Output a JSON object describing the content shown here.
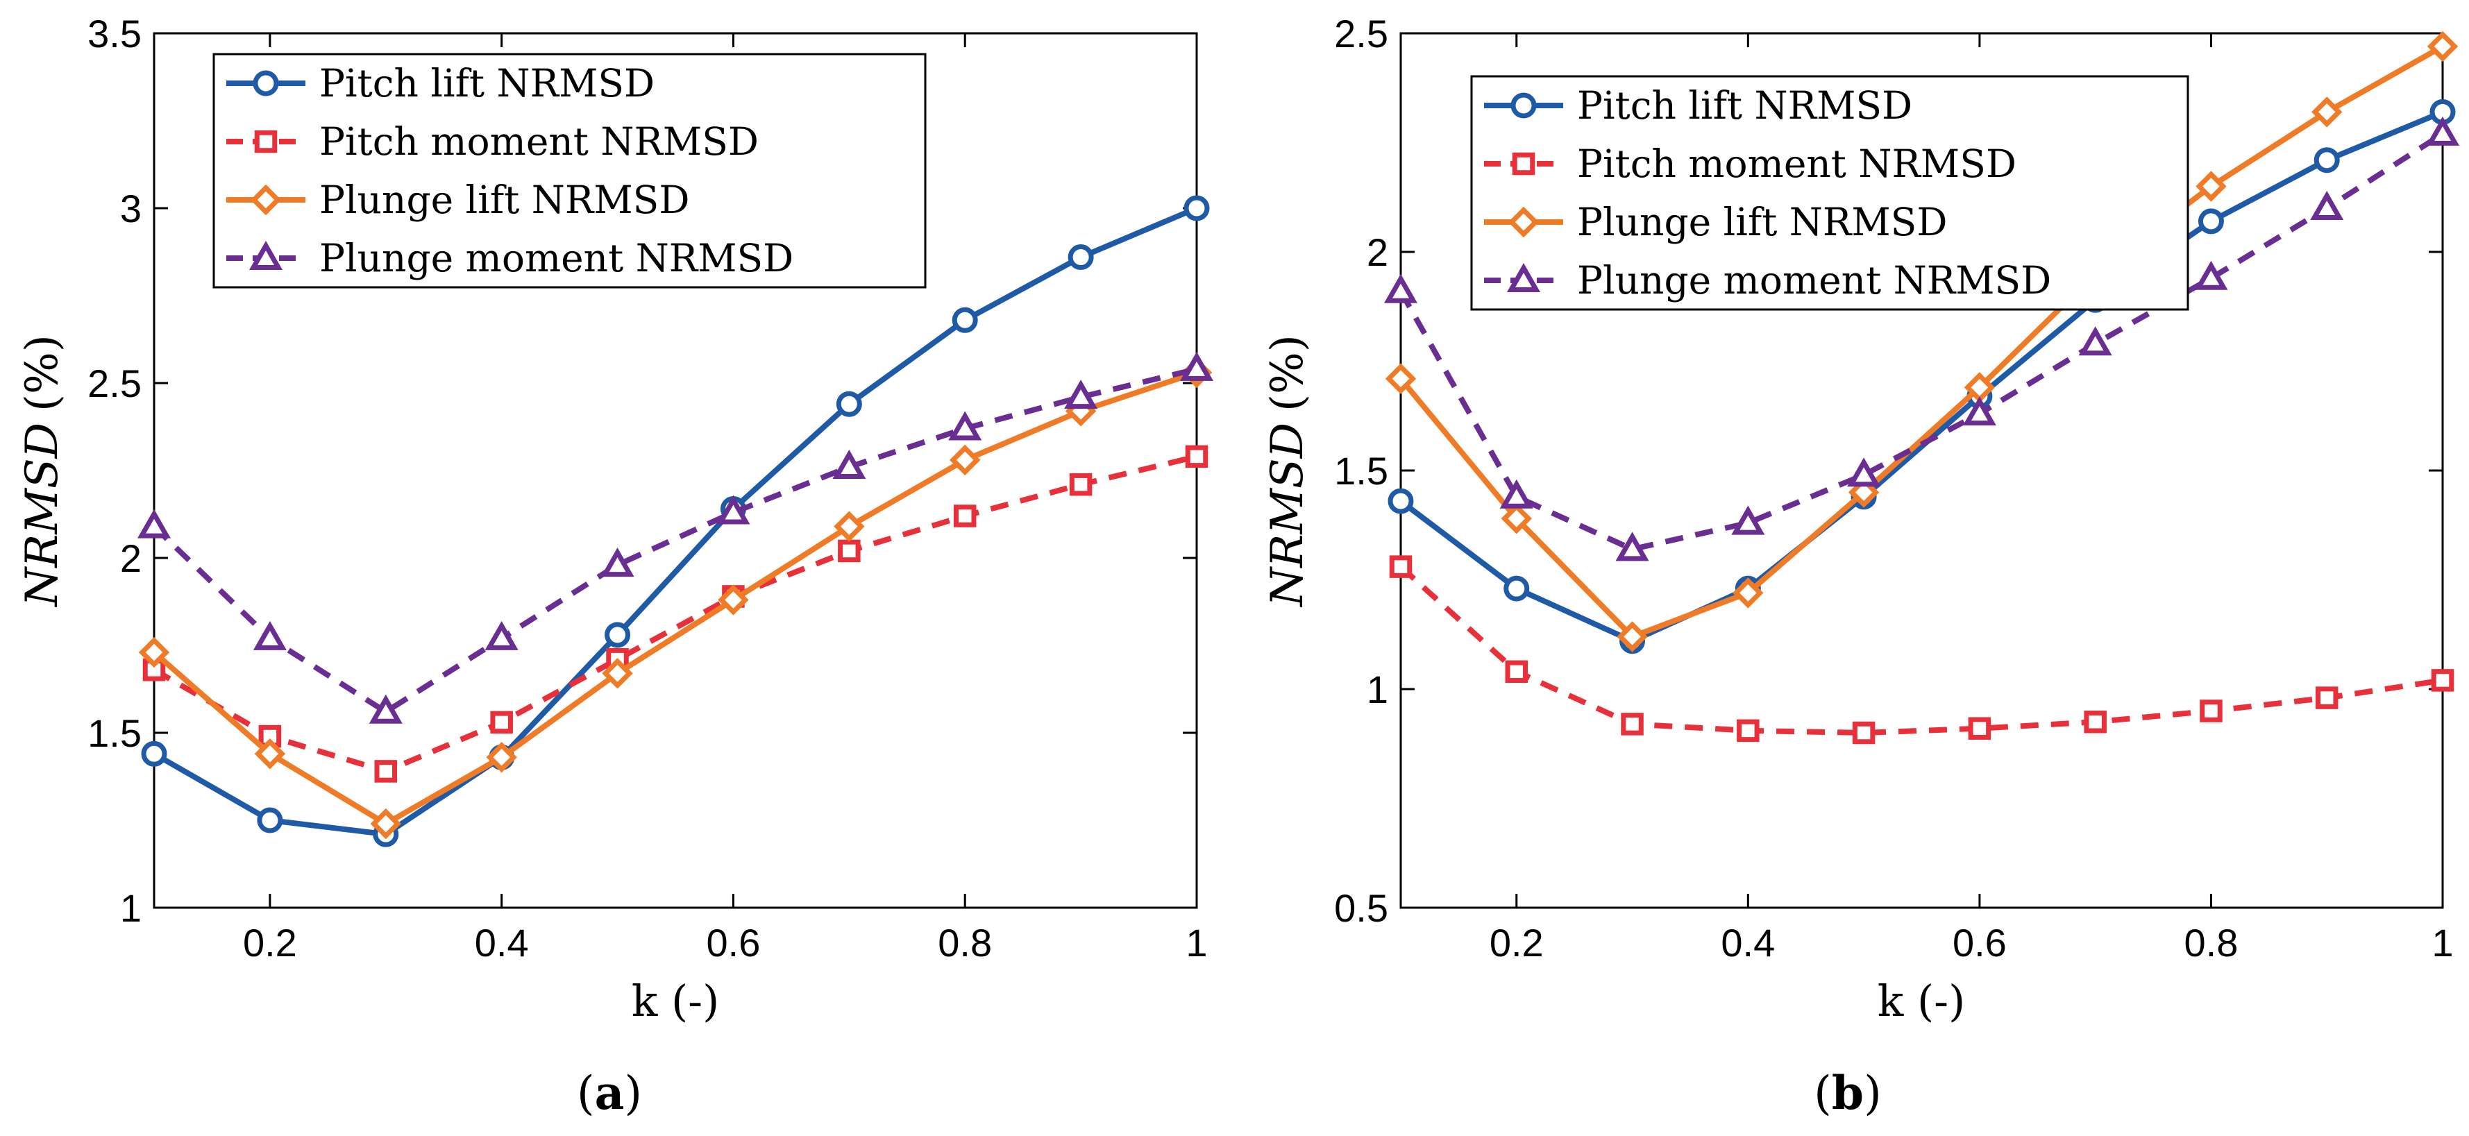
{
  "chart_data": [
    {
      "type": "line",
      "panel": "a",
      "caption_letter": "a",
      "xlabel": "k (-)",
      "ylabel_var": "NRMSD",
      "ylabel_unit": "(%)",
      "xlim": [
        0.1,
        1
      ],
      "ylim": [
        1,
        3.5
      ],
      "xticks": [
        0.2,
        0.4,
        0.6,
        0.8,
        1
      ],
      "xtick_labels": [
        "0.2",
        "0.4",
        "0.6",
        "0.8",
        "1"
      ],
      "yticks": [
        1,
        1.5,
        2,
        2.5,
        3,
        3.5
      ],
      "ytick_labels": [
        "1",
        "1.5",
        "2",
        "2.5",
        "3",
        "3.5"
      ],
      "legend_position": "top-left",
      "x": [
        0.1,
        0.2,
        0.3,
        0.4,
        0.5,
        0.6,
        0.7,
        0.8,
        0.9,
        1.0
      ],
      "series": [
        {
          "name": "Pitch lift NRMSD",
          "color": "#1f5aa6",
          "dash": "solid",
          "marker": "circle",
          "values": [
            1.44,
            1.25,
            1.21,
            1.43,
            1.78,
            2.14,
            2.44,
            2.68,
            2.86,
            3.0
          ]
        },
        {
          "name": "Pitch moment NRMSD",
          "color": "#e8303a",
          "dash": "dashed",
          "marker": "square",
          "values": [
            1.68,
            1.49,
            1.39,
            1.53,
            1.71,
            1.89,
            2.02,
            2.12,
            2.21,
            2.29
          ]
        },
        {
          "name": "Plunge lift NRMSD",
          "color": "#f07b26",
          "dash": "solid",
          "marker": "diamond",
          "values": [
            1.73,
            1.44,
            1.24,
            1.43,
            1.67,
            1.88,
            2.09,
            2.28,
            2.42,
            2.53
          ]
        },
        {
          "name": "Plunge moment NRMSD",
          "color": "#6a2d91",
          "dash": "dashed",
          "marker": "triangle",
          "values": [
            2.09,
            1.77,
            1.56,
            1.77,
            1.98,
            2.13,
            2.26,
            2.37,
            2.46,
            2.54
          ]
        }
      ]
    },
    {
      "type": "line",
      "panel": "b",
      "caption_letter": "b",
      "xlabel": "k (-)",
      "ylabel_var": "NRMSD",
      "ylabel_unit": "(%)",
      "xlim": [
        0.1,
        1
      ],
      "ylim": [
        0.5,
        2.5
      ],
      "xticks": [
        0.2,
        0.4,
        0.6,
        0.8,
        1
      ],
      "xtick_labels": [
        "0.2",
        "0.4",
        "0.6",
        "0.8",
        "1"
      ],
      "yticks": [
        0.5,
        1,
        1.5,
        2,
        2.5
      ],
      "ytick_labels": [
        "0.5",
        "1",
        "1.5",
        "2",
        "2.5"
      ],
      "legend_position": "top-left",
      "x": [
        0.1,
        0.2,
        0.3,
        0.4,
        0.5,
        0.6,
        0.7,
        0.8,
        0.9,
        1.0
      ],
      "series": [
        {
          "name": "Pitch lift NRMSD",
          "color": "#1f5aa6",
          "dash": "solid",
          "marker": "circle",
          "values": [
            1.43,
            1.23,
            1.11,
            1.23,
            1.44,
            1.67,
            1.89,
            2.07,
            2.21,
            2.32
          ]
        },
        {
          "name": "Pitch moment NRMSD",
          "color": "#e8303a",
          "dash": "dashed",
          "marker": "square",
          "values": [
            1.28,
            1.04,
            0.92,
            0.905,
            0.9,
            0.91,
            0.925,
            0.95,
            0.98,
            1.02
          ]
        },
        {
          "name": "Plunge lift NRMSD",
          "color": "#f07b26",
          "dash": "solid",
          "marker": "diamond",
          "values": [
            1.71,
            1.39,
            1.12,
            1.22,
            1.45,
            1.69,
            1.95,
            2.15,
            2.32,
            2.47
          ]
        },
        {
          "name": "Plunge moment NRMSD",
          "color": "#6a2d91",
          "dash": "dashed",
          "marker": "triangle",
          "values": [
            1.91,
            1.44,
            1.32,
            1.38,
            1.49,
            1.63,
            1.79,
            1.94,
            2.1,
            2.27
          ]
        }
      ]
    }
  ]
}
